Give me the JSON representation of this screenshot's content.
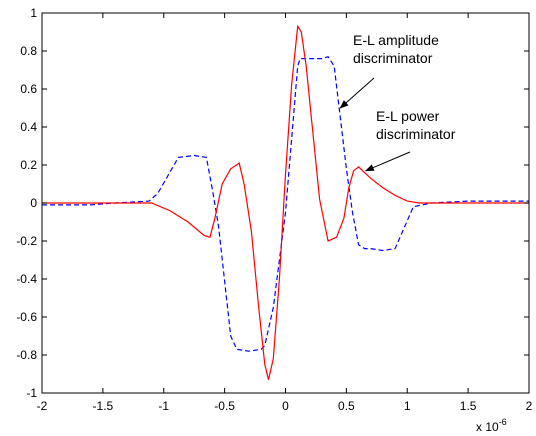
{
  "chart_data": {
    "type": "line",
    "title": "",
    "xlabel": "",
    "ylabel": "",
    "x_exponent_label": "x 10",
    "x_exponent_power": "-6",
    "xlim": [
      -2,
      2
    ],
    "ylim": [
      -1,
      1
    ],
    "grid": false,
    "x_ticks": [
      {
        "value": -2,
        "label": "-2"
      },
      {
        "value": -1.5,
        "label": "-1.5"
      },
      {
        "value": -1,
        "label": "-1"
      },
      {
        "value": -0.5,
        "label": "-0.5"
      },
      {
        "value": 0,
        "label": "0"
      },
      {
        "value": 0.5,
        "label": "0.5"
      },
      {
        "value": 1,
        "label": "1"
      },
      {
        "value": 1.5,
        "label": "1.5"
      },
      {
        "value": 2,
        "label": "2"
      }
    ],
    "y_ticks": [
      {
        "value": 1,
        "label": "1"
      },
      {
        "value": 0.8,
        "label": "0.8"
      },
      {
        "value": 0.6,
        "label": "0.6"
      },
      {
        "value": 0.4,
        "label": "0.4"
      },
      {
        "value": 0.2,
        "label": "0.2"
      },
      {
        "value": 0,
        "label": "0"
      },
      {
        "value": -0.2,
        "label": "-0.2"
      },
      {
        "value": -0.4,
        "label": "-0.4"
      },
      {
        "value": -0.6,
        "label": "-0.6"
      },
      {
        "value": -0.8,
        "label": "-0.8"
      },
      {
        "value": -1,
        "label": "-1"
      }
    ],
    "series": [
      {
        "name": "",
        "color": "#0000ff",
        "style": "dashed",
        "x": [
          -2,
          -1.6,
          -1.4,
          -1.12,
          -1.05,
          -0.88,
          -0.75,
          -0.65,
          -0.6,
          -0.55,
          -0.45,
          -0.4,
          -0.3,
          -0.2,
          -0.17,
          -0.1,
          0,
          0.1,
          0.12,
          0.2,
          0.3,
          0.35,
          0.4,
          0.45,
          0.5,
          0.55,
          0.6,
          0.65,
          0.7,
          0.8,
          0.9,
          1.05,
          1.2,
          1.5,
          1.7,
          2
        ],
        "y": [
          -0.01,
          -0.01,
          0,
          0.01,
          0.05,
          0.24,
          0.25,
          0.24,
          0.07,
          -0.12,
          -0.7,
          -0.77,
          -0.78,
          -0.77,
          -0.75,
          -0.55,
          -0.05,
          0.72,
          0.76,
          0.76,
          0.76,
          0.77,
          0.72,
          0.45,
          0.18,
          -0.05,
          -0.22,
          -0.24,
          -0.24,
          -0.25,
          -0.24,
          -0.02,
          0,
          0.01,
          0.01,
          0.01
        ]
      },
      {
        "name": "",
        "color": "#ff0000",
        "style": "solid",
        "x": [
          -2,
          -1.3,
          -1.1,
          -0.95,
          -0.8,
          -0.67,
          -0.62,
          -0.58,
          -0.52,
          -0.45,
          -0.38,
          -0.34,
          -0.28,
          -0.22,
          -0.17,
          -0.14,
          -0.1,
          -0.05,
          0,
          0.05,
          0.1,
          0.13,
          0.17,
          0.22,
          0.28,
          0.35,
          0.42,
          0.48,
          0.52,
          0.56,
          0.6,
          0.65,
          0.7,
          0.8,
          0.9,
          1,
          1.1,
          1.3,
          2
        ],
        "y": [
          0,
          0,
          0,
          -0.04,
          -0.1,
          -0.17,
          -0.18,
          -0.08,
          0.1,
          0.18,
          0.21,
          0.1,
          -0.15,
          -0.55,
          -0.85,
          -0.93,
          -0.82,
          -0.4,
          0.15,
          0.62,
          0.93,
          0.9,
          0.72,
          0.4,
          0.02,
          -0.2,
          -0.18,
          -0.08,
          0.08,
          0.17,
          0.19,
          0.16,
          0.13,
          0.08,
          0.04,
          0.01,
          0,
          0,
          0
        ]
      }
    ],
    "annotations": [
      {
        "lines": [
          "E-L amplitude",
          "discriminator"
        ],
        "points_to_series": 0,
        "target": [
          0.45,
          0.5
        ]
      },
      {
        "lines": [
          "E-L power",
          "discriminator"
        ],
        "points_to_series": 1,
        "target": [
          0.66,
          0.17
        ]
      }
    ]
  }
}
